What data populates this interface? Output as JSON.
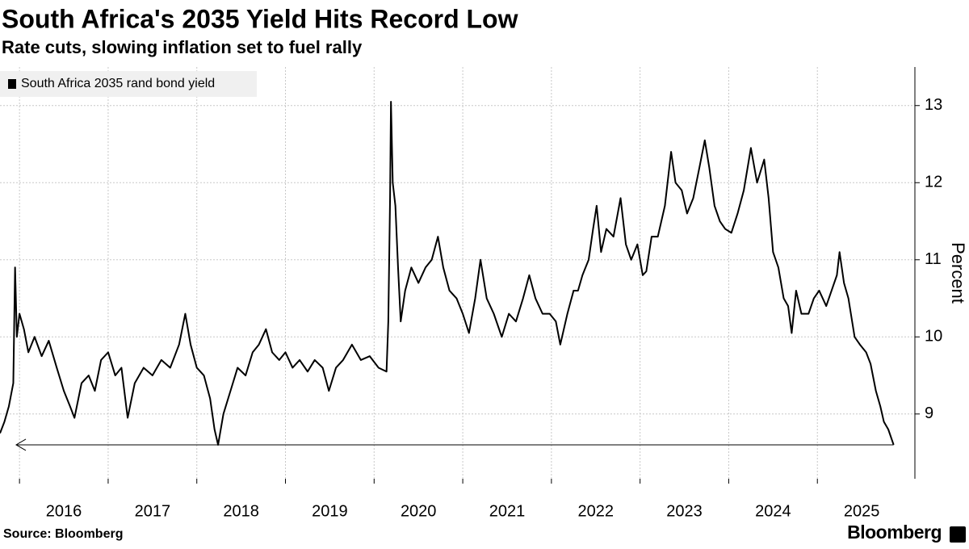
{
  "chart_data": {
    "type": "line",
    "title": "South Africa's 2035 Yield Hits Record Low",
    "subtitle": "Rate cuts, slowing inflation set to fuel rally",
    "y_axis_label": "Percent",
    "source": "Source: Bloomberg",
    "brand": "Bloomberg",
    "legend": "top-left",
    "grid": true,
    "reference_value": 8.6,
    "xlim": [
      2015.78,
      2026.1
    ],
    "xticks": [
      2016,
      2017,
      2018,
      2019,
      2020,
      2021,
      2022,
      2023,
      2024,
      2025
    ],
    "ylim": [
      8.16,
      13.5
    ],
    "yticks": [
      9,
      10,
      11,
      12,
      13
    ],
    "x": [
      2015.78,
      2015.83,
      2015.88,
      2015.93,
      2015.95,
      2015.97,
      2016.0,
      2016.05,
      2016.1,
      2016.17,
      2016.25,
      2016.33,
      2016.42,
      2016.5,
      2016.57,
      2016.62,
      2016.7,
      2016.78,
      2016.85,
      2016.92,
      2017.0,
      2017.08,
      2017.15,
      2017.22,
      2017.3,
      2017.4,
      2017.5,
      2017.6,
      2017.7,
      2017.8,
      2017.87,
      2017.93,
      2018.0,
      2018.08,
      2018.15,
      2018.2,
      2018.24,
      2018.3,
      2018.38,
      2018.46,
      2018.55,
      2018.63,
      2018.7,
      2018.78,
      2018.85,
      2018.93,
      2019.0,
      2019.08,
      2019.16,
      2019.25,
      2019.33,
      2019.42,
      2019.49,
      2019.57,
      2019.65,
      2019.75,
      2019.85,
      2019.95,
      2020.05,
      2020.14,
      2020.16,
      2020.18,
      2020.19,
      2020.21,
      2020.24,
      2020.27,
      2020.3,
      2020.35,
      2020.42,
      2020.5,
      2020.58,
      2020.65,
      2020.72,
      2020.78,
      2020.85,
      2020.93,
      2021.0,
      2021.07,
      2021.14,
      2021.2,
      2021.27,
      2021.35,
      2021.44,
      2021.52,
      2021.6,
      2021.68,
      2021.75,
      2021.82,
      2021.9,
      2021.98,
      2022.05,
      2022.1,
      2022.18,
      2022.25,
      2022.3,
      2022.35,
      2022.42,
      2022.47,
      2022.51,
      2022.56,
      2022.62,
      2022.7,
      2022.78,
      2022.84,
      2022.9,
      2022.97,
      2023.03,
      2023.07,
      2023.13,
      2023.2,
      2023.28,
      2023.35,
      2023.4,
      2023.47,
      2023.53,
      2023.6,
      2023.67,
      2023.73,
      2023.78,
      2023.84,
      2023.9,
      2023.96,
      2024.03,
      2024.1,
      2024.17,
      2024.25,
      2024.32,
      2024.4,
      2024.45,
      2024.5,
      2024.56,
      2024.62,
      2024.67,
      2024.71,
      2024.76,
      2024.82,
      2024.9,
      2024.96,
      2025.02,
      2025.1,
      2025.16,
      2025.22,
      2025.25,
      2025.3,
      2025.35,
      2025.42,
      2025.48,
      2025.55,
      2025.6,
      2025.66,
      2025.71,
      2025.75,
      2025.8,
      2025.86
    ],
    "series": [
      {
        "name": "South Africa 2035 rand bond yield",
        "color": "#000000",
        "values": [
          8.75,
          8.9,
          9.1,
          9.4,
          10.9,
          10.0,
          10.3,
          10.1,
          9.8,
          10.0,
          9.75,
          9.95,
          9.6,
          9.3,
          9.1,
          8.95,
          9.4,
          9.5,
          9.3,
          9.7,
          9.8,
          9.5,
          9.6,
          8.95,
          9.4,
          9.6,
          9.5,
          9.7,
          9.6,
          9.9,
          10.3,
          9.9,
          9.6,
          9.5,
          9.2,
          8.8,
          8.6,
          9.0,
          9.3,
          9.6,
          9.5,
          9.8,
          9.9,
          10.1,
          9.8,
          9.7,
          9.8,
          9.6,
          9.7,
          9.55,
          9.7,
          9.6,
          9.3,
          9.6,
          9.7,
          9.9,
          9.7,
          9.75,
          9.6,
          9.55,
          10.2,
          11.8,
          13.05,
          12.0,
          11.7,
          10.9,
          10.2,
          10.6,
          10.9,
          10.7,
          10.9,
          11.0,
          11.3,
          10.9,
          10.6,
          10.5,
          10.3,
          10.05,
          10.5,
          11.0,
          10.5,
          10.3,
          10.0,
          10.3,
          10.2,
          10.5,
          10.8,
          10.5,
          10.3,
          10.3,
          10.2,
          9.9,
          10.3,
          10.6,
          10.6,
          10.8,
          11.0,
          11.4,
          11.7,
          11.1,
          11.4,
          11.3,
          11.8,
          11.2,
          11.0,
          11.2,
          10.8,
          10.85,
          11.3,
          11.3,
          11.7,
          12.4,
          12.0,
          11.9,
          11.6,
          11.8,
          12.2,
          12.55,
          12.2,
          11.7,
          11.5,
          11.4,
          11.35,
          11.6,
          11.9,
          12.45,
          12.0,
          12.3,
          11.8,
          11.1,
          10.9,
          10.5,
          10.4,
          10.05,
          10.6,
          10.3,
          10.3,
          10.5,
          10.6,
          10.4,
          10.6,
          10.8,
          11.1,
          10.7,
          10.5,
          10.0,
          9.9,
          9.8,
          9.65,
          9.3,
          9.1,
          8.9,
          8.8,
          8.6
        ]
      }
    ]
  }
}
